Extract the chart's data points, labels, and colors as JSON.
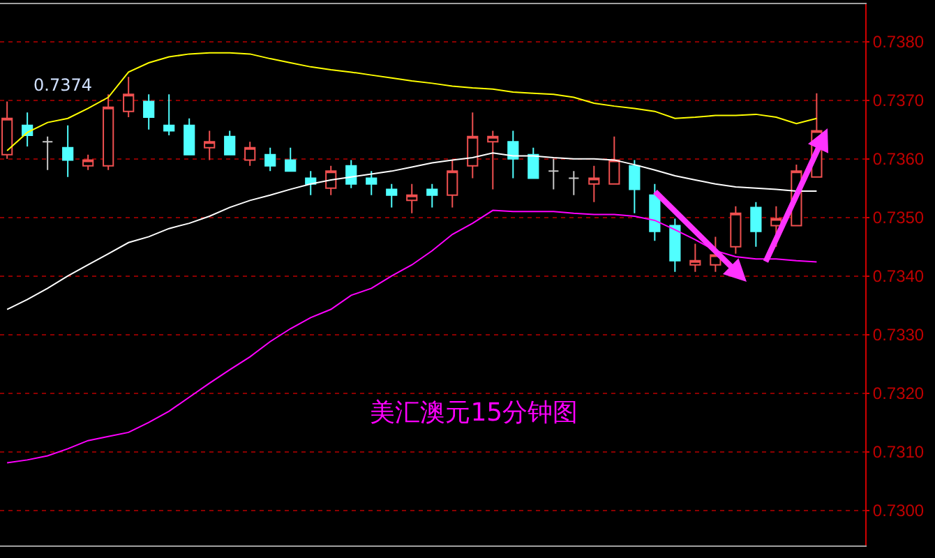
{
  "chart_data": {
    "type": "candlestick",
    "title": "美汇澳元15分钟图",
    "categories": [
      null,
      null,
      null,
      null,
      null,
      null,
      null,
      null,
      null,
      null,
      null,
      null,
      null,
      null,
      null,
      null,
      null,
      null,
      null,
      null,
      null,
      null,
      null,
      null,
      null,
      null,
      null,
      null,
      null,
      null,
      null,
      null,
      null,
      null,
      null,
      null,
      null,
      null,
      null,
      null,
      null
    ],
    "ohlc": [
      [
        0.73607,
        0.73698,
        0.736,
        0.73669
      ],
      [
        0.73657,
        0.73679,
        0.73621,
        0.7364
      ],
      [
        0.73629,
        0.73638,
        0.73581,
        0.73629
      ],
      [
        0.73619,
        0.73657,
        0.73569,
        0.73598
      ],
      [
        0.73588,
        0.73607,
        0.73581,
        0.73598
      ],
      [
        0.73588,
        0.7371,
        0.73581,
        0.73688
      ],
      [
        0.73681,
        0.7374,
        0.73671,
        0.7371
      ],
      [
        0.73698,
        0.7371,
        0.7365,
        0.73671
      ],
      [
        0.73657,
        0.7371,
        0.7364,
        0.73648
      ],
      [
        0.73657,
        0.73669,
        0.73607,
        0.73607
      ],
      [
        0.73619,
        0.73648,
        0.73598,
        0.73629
      ],
      [
        0.73638,
        0.73648,
        0.73607,
        0.73607
      ],
      [
        0.73598,
        0.73629,
        0.73588,
        0.73619
      ],
      [
        0.73607,
        0.73619,
        0.73579,
        0.73588
      ],
      [
        0.73598,
        0.73619,
        0.73579,
        0.73579
      ],
      [
        0.73567,
        0.73579,
        0.73538,
        0.73557
      ],
      [
        0.7355,
        0.73588,
        0.73538,
        0.73579
      ],
      [
        0.73588,
        0.73598,
        0.7355,
        0.73557
      ],
      [
        0.73567,
        0.73579,
        0.73538,
        0.73557
      ],
      [
        0.73548,
        0.73557,
        0.73517,
        0.73538
      ],
      [
        0.73529,
        0.73557,
        0.73507,
        0.73538
      ],
      [
        0.73548,
        0.73557,
        0.73517,
        0.73538
      ],
      [
        0.73538,
        0.73598,
        0.73517,
        0.73579
      ],
      [
        0.73588,
        0.73679,
        0.73567,
        0.73638
      ],
      [
        0.73629,
        0.73648,
        0.73548,
        0.73638
      ],
      [
        0.73629,
        0.73648,
        0.73567,
        0.736
      ],
      [
        0.73607,
        0.73619,
        0.73567,
        0.73567
      ],
      [
        0.73579,
        0.736,
        0.73548,
        0.73579
      ],
      [
        0.73567,
        0.73579,
        0.73538,
        0.73567
      ],
      [
        0.73557,
        0.73588,
        0.73526,
        0.73567
      ],
      [
        0.73557,
        0.73638,
        0.73557,
        0.73598
      ],
      [
        0.73588,
        0.73598,
        0.73507,
        0.73548
      ],
      [
        0.73538,
        0.73557,
        0.7346,
        0.73476
      ],
      [
        0.73486,
        0.73498,
        0.73407,
        0.73426
      ],
      [
        0.73419,
        0.73455,
        0.73407,
        0.73426
      ],
      [
        0.73419,
        0.73467,
        0.73407,
        0.73436
      ],
      [
        0.7345,
        0.73519,
        0.73438,
        0.73507
      ],
      [
        0.73517,
        0.73526,
        0.7345,
        0.73476
      ],
      [
        0.73486,
        0.73519,
        0.7345,
        0.73498
      ],
      [
        0.73486,
        0.7359,
        0.73486,
        0.73579
      ],
      [
        0.73569,
        0.73712,
        0.73569,
        0.73648
      ]
    ],
    "colors": [
      "#f05050",
      "#50ffff",
      "#c8c8c8",
      "#50ffff",
      "#f05050",
      "#f05050",
      "#f05050",
      "#50ffff",
      "#50ffff",
      "#50ffff",
      "#f05050",
      "#50ffff",
      "#f05050",
      "#50ffff",
      "#50ffff",
      "#50ffff",
      "#f05050",
      "#50ffff",
      "#50ffff",
      "#50ffff",
      "#f05050",
      "#50ffff",
      "#f05050",
      "#f05050",
      "#f05050",
      "#50ffff",
      "#50ffff",
      "#c8c8c8",
      "#c8c8c8",
      "#f05050",
      "#f05050",
      "#50ffff",
      "#50ffff",
      "#50ffff",
      "#f05050",
      "#f05050",
      "#f05050",
      "#50ffff",
      "#f05050",
      "#f05050",
      "#f05050"
    ],
    "series": [
      {
        "type": "line",
        "color": "#ffff00",
        "values": [
          0.73614,
          0.73645,
          0.73662,
          0.73669,
          0.73686,
          0.73705,
          0.73748,
          0.73764,
          0.73774,
          0.73779,
          0.73781,
          0.73781,
          0.73779,
          0.73771,
          0.73764,
          0.73757,
          0.73752,
          0.73748,
          0.73743,
          0.73738,
          0.73733,
          0.73729,
          0.73724,
          0.73721,
          0.73719,
          0.73714,
          0.73712,
          0.7371,
          0.73705,
          0.73695,
          0.7369,
          0.73686,
          0.73681,
          0.73669,
          0.73671,
          0.73674,
          0.73674,
          0.73676,
          0.73671,
          0.7366,
          0.73669
        ]
      },
      {
        "type": "line",
        "color": "#ffffff",
        "values": [
          0.73343,
          0.7336,
          0.73379,
          0.734,
          0.73419,
          0.73438,
          0.73457,
          0.73467,
          0.73481,
          0.7349,
          0.73502,
          0.73517,
          0.73529,
          0.73538,
          0.73548,
          0.73557,
          0.73564,
          0.73569,
          0.73574,
          0.73579,
          0.73586,
          0.73593,
          0.73598,
          0.73602,
          0.7361,
          0.73605,
          0.73605,
          0.73602,
          0.736,
          0.736,
          0.73598,
          0.7359,
          0.73581,
          0.73571,
          0.73564,
          0.73557,
          0.73552,
          0.7355,
          0.73548,
          0.73545,
          0.73545
        ]
      },
      {
        "type": "line",
        "color": "#ff00ff",
        "values": [
          0.73081,
          0.73086,
          0.73093,
          0.73105,
          0.73119,
          0.73126,
          0.73133,
          0.7315,
          0.73169,
          0.73193,
          0.73217,
          0.7324,
          0.73262,
          0.73288,
          0.7331,
          0.73329,
          0.73343,
          0.73367,
          0.73379,
          0.734,
          0.73419,
          0.73443,
          0.73471,
          0.7349,
          0.73512,
          0.7351,
          0.7351,
          0.7351,
          0.73507,
          0.73505,
          0.73505,
          0.73502,
          0.73495,
          0.73479,
          0.73462,
          0.73443,
          0.73433,
          0.73429,
          0.73429,
          0.73426,
          0.73424
        ]
      }
    ],
    "ylim": [
      0.7294,
      0.73864
    ],
    "yticks": [
      {
        "value": 0.73,
        "label": "0.7300"
      },
      {
        "value": 0.731,
        "label": "0.7310"
      },
      {
        "value": 0.732,
        "label": "0.7320"
      },
      {
        "value": 0.733,
        "label": "0.7330"
      },
      {
        "value": 0.734,
        "label": "0.7340"
      },
      {
        "value": 0.735,
        "label": "0.7350"
      },
      {
        "value": 0.736,
        "label": "0.7360"
      },
      {
        "value": 0.737,
        "label": "0.7370"
      },
      {
        "value": 0.738,
        "label": "0.7380"
      }
    ],
    "grid": "y",
    "tick_labels": "y",
    "annotations": [
      "0.7374"
    ]
  }
}
